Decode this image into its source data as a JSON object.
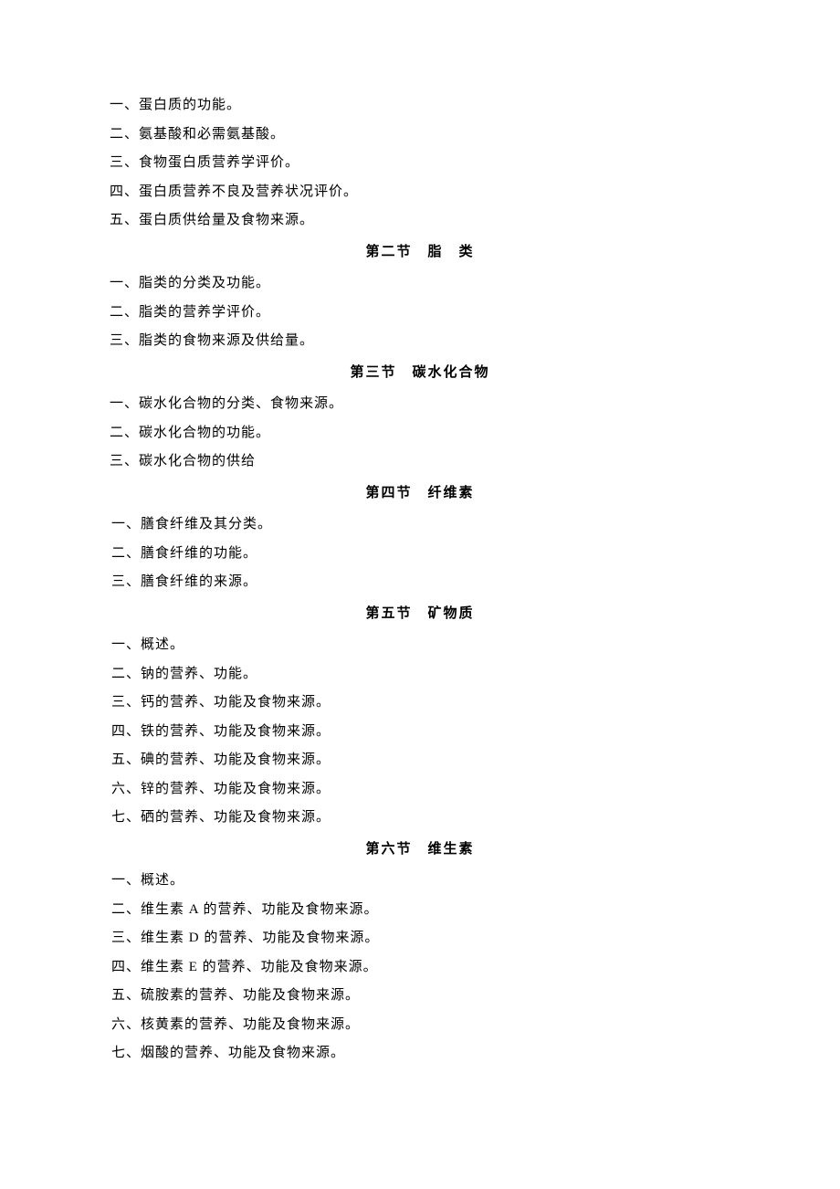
{
  "section1": {
    "items": [
      "一、蛋白质的功能。",
      "二、氨基酸和必需氨基酸。",
      "三、食物蛋白质营养学评价。",
      "四、蛋白质营养不良及营养状况评价。",
      "五、蛋白质供给量及食物来源。"
    ]
  },
  "section2": {
    "heading": "第二节　脂　类",
    "items": [
      "一、脂类的分类及功能。",
      "二、脂类的营养学评价。",
      "三、脂类的食物来源及供给量。"
    ]
  },
  "section3": {
    "heading": "第三节　碳水化合物",
    "items": [
      "一、碳水化合物的分类、食物来源。",
      "二、碳水化合物的功能。",
      "三、碳水化合物的供给"
    ]
  },
  "section4": {
    "heading": "第四节　纤维素",
    "items": [
      "一、膳食纤维及其分类。",
      "二、膳食纤维的功能。",
      "三、膳食纤维的来源。"
    ]
  },
  "section5": {
    "heading": "第五节　矿物质",
    "items": [
      "一、概述。",
      "二、钠的营养、功能。",
      "三、钙的营养、功能及食物来源。",
      "四、铁的营养、功能及食物来源。",
      "五、碘的营养、功能及食物来源。",
      "六、锌的营养、功能及食物来源。",
      "七、硒的营养、功能及食物来源。"
    ]
  },
  "section6": {
    "heading": "第六节　维生素",
    "items": [
      "一、概述。",
      "二、维生素 A 的营养、功能及食物来源。",
      "三、维生素 D 的营养、功能及食物来源。",
      "四、维生素 E 的营养、功能及食物来源。",
      "五、硫胺素的营养、功能及食物来源。",
      "六、核黄素的营养、功能及食物来源。",
      "七、烟酸的营养、功能及食物来源。"
    ]
  }
}
